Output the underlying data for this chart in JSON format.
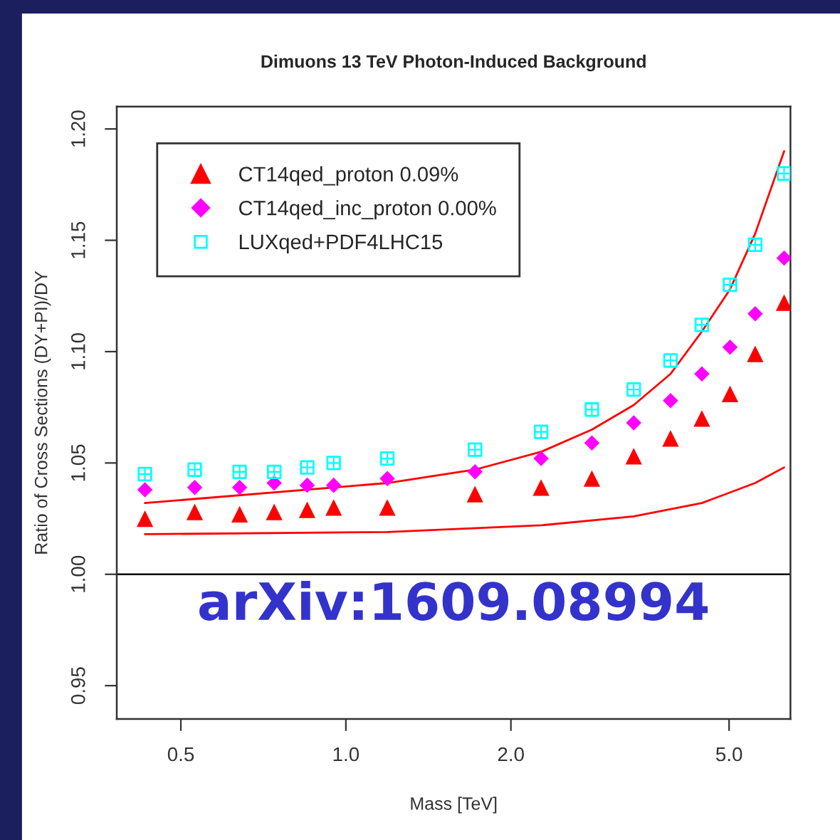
{
  "chart_data": {
    "type": "scatter",
    "title": "Dimuons 13 TeV Photon-Induced Background",
    "xlabel": "Mass [TeV]",
    "ylabel": "Ratio of Cross Sections (DY+PI)/DY",
    "x": [
      0.43,
      0.53,
      0.64,
      0.74,
      0.85,
      0.95,
      1.19,
      1.72,
      2.27,
      2.81,
      3.35,
      3.91,
      4.46,
      5.02,
      5.58,
      6.3
    ],
    "series": [
      {
        "name": "CT14qed_proton 0.09%",
        "color": "#ff0000",
        "marker": "triangle",
        "values": [
          1.025,
          1.028,
          1.027,
          1.028,
          1.029,
          1.03,
          1.03,
          1.036,
          1.039,
          1.043,
          1.053,
          1.061,
          1.07,
          1.081,
          1.099,
          1.122
        ]
      },
      {
        "name": "CT14qed_inc_proton 0.00%",
        "color": "#ff00ff",
        "marker": "diamond",
        "values": [
          1.038,
          1.039,
          1.039,
          1.041,
          1.04,
          1.04,
          1.043,
          1.046,
          1.052,
          1.059,
          1.068,
          1.078,
          1.09,
          1.102,
          1.117,
          1.142
        ]
      },
      {
        "name": "LUXqed+PDF4LHC15",
        "color": "#00ffff",
        "marker": "square",
        "values": [
          1.045,
          1.047,
          1.046,
          1.046,
          1.048,
          1.05,
          1.052,
          1.056,
          1.064,
          1.074,
          1.083,
          1.096,
          1.112,
          1.13,
          1.148,
          1.18
        ]
      },
      {
        "type": "line",
        "color": "#ff0000",
        "x": [
          0.43,
          1.19,
          1.72,
          2.27,
          2.81,
          3.35,
          3.91,
          4.46,
          5.02,
          5.58,
          6.3
        ],
        "values": [
          1.032,
          1.041,
          1.047,
          1.055,
          1.065,
          1.076,
          1.09,
          1.109,
          1.128,
          1.153,
          1.19
        ]
      },
      {
        "type": "line",
        "color": "#ff0000",
        "x": [
          0.43,
          1.19,
          2.27,
          3.35,
          4.46,
          5.58,
          6.3
        ],
        "values": [
          1.018,
          1.019,
          1.022,
          1.026,
          1.032,
          1.041,
          1.048
        ]
      }
    ],
    "log": "x",
    "xlim": [
      0.382,
      6.47
    ],
    "ylim": [
      0.935,
      1.21
    ],
    "xticks": [
      {
        "value": 0.5,
        "label": "0.5"
      },
      {
        "value": 1,
        "label": "1.0"
      },
      {
        "value": 2,
        "label": "2.0"
      },
      {
        "value": 5,
        "label": "5.0"
      }
    ],
    "yticks": [
      {
        "value": 0.95,
        "label": "0.95"
      },
      {
        "value": 1.0,
        "label": "1.00"
      },
      {
        "value": 1.05,
        "label": "1.05"
      },
      {
        "value": 1.1,
        "label": "1.10"
      },
      {
        "value": 1.15,
        "label": "1.15"
      },
      {
        "value": 1.2,
        "label": "1.20"
      }
    ],
    "ref_lines": [
      {
        "axis": "y",
        "value": 1.0,
        "color": "#000000"
      }
    ],
    "annotations": [
      "arXiv:1609.08994"
    ],
    "legend": "top left",
    "grid": false
  }
}
